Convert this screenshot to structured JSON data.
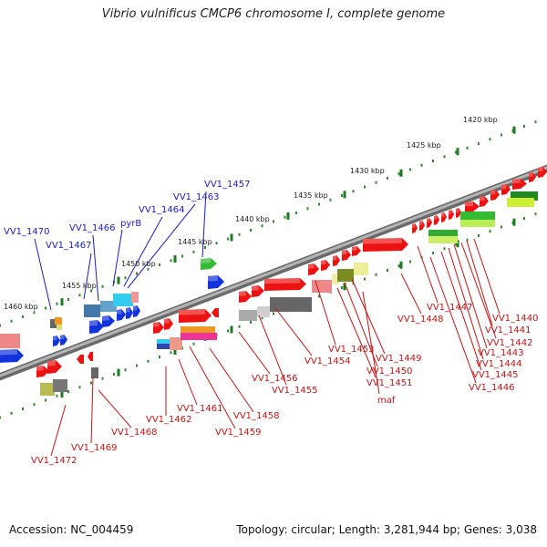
{
  "title": "Vibrio vulnificus CMCP6 chromosome I, complete genome",
  "footer": {
    "accession": "Accession: NC_004459",
    "summary": "Topology: circular; Length: 3,281,944 bp; Genes: 3,038"
  },
  "colors": {
    "backbone": "#8c8c8c",
    "tick": "#2e8b2e",
    "label_forward": "#1a1acc",
    "label_reverse": "#cc1111",
    "gene_red": "#ee1111",
    "gene_blue": "#1133dd",
    "gene_green": "#33bb33"
  },
  "ticks": [
    {
      "label": "1420 kbp"
    },
    {
      "label": "1425 kbp"
    },
    {
      "label": "1430 kbp"
    },
    {
      "label": "1435 kbp"
    },
    {
      "label": "1440 kbp"
    },
    {
      "label": "1445 kbp"
    },
    {
      "label": "1450 kbp"
    },
    {
      "label": "1455 kbp"
    },
    {
      "label": "1460 kbp"
    }
  ],
  "gene_labels_top": [
    "VV1_1457",
    "VV1_1463",
    "VV1_1464",
    "pyrB",
    "VV1_1466",
    "VV1_1467",
    "VV1_1470"
  ],
  "gene_labels_bottom": [
    "VV1_1440",
    "VV1_1441",
    "VV1_1442",
    "VV1_1443",
    "VV1_1444",
    "VV1_1445",
    "VV1_1446",
    "VV1_1447",
    "VV1_1448",
    "VV1_1449",
    "VV1_1450",
    "VV1_1451",
    "maf",
    "VV1_1453",
    "VV1_1454",
    "VV1_1455",
    "VV1_1456",
    "VV1_1458",
    "VV1_1459",
    "VV1_1461",
    "VV1_1462",
    "VV1_1468",
    "VV1_1469",
    "VV1_1472"
  ]
}
